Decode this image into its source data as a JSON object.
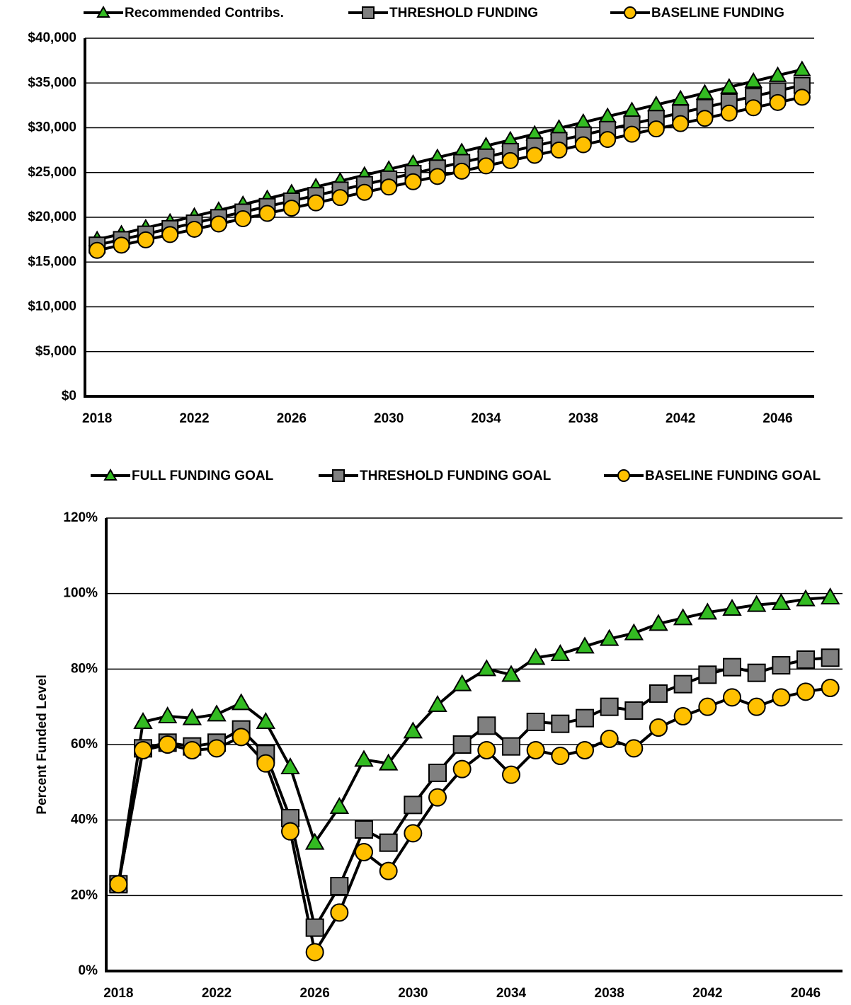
{
  "chart_data": [
    {
      "type": "line",
      "x": [
        2018,
        2019,
        2020,
        2021,
        2022,
        2023,
        2024,
        2025,
        2026,
        2027,
        2028,
        2029,
        2030,
        2031,
        2032,
        2033,
        2034,
        2035,
        2036,
        2037,
        2038,
        2039,
        2040,
        2041,
        2042,
        2043,
        2044,
        2045,
        2046,
        2047
      ],
      "xlim": [
        2017.5,
        2047.5
      ],
      "xticks": [
        2018,
        2022,
        2026,
        2030,
        2034,
        2038,
        2042,
        2046
      ],
      "ylim": [
        0,
        40000
      ],
      "yticks": [
        {
          "value": 0,
          "label": "$0"
        },
        {
          "value": 5000,
          "label": "$5,000"
        },
        {
          "value": 10000,
          "label": "$10,000"
        },
        {
          "value": 15000,
          "label": "$15,000"
        },
        {
          "value": 20000,
          "label": "$20,000"
        },
        {
          "value": 25000,
          "label": "$25,000"
        },
        {
          "value": 30000,
          "label": "$30,000"
        },
        {
          "value": 35000,
          "label": "$35,000"
        },
        {
          "value": 40000,
          "label": "$40,000"
        }
      ],
      "grid": true,
      "legend": "top",
      "line_color": "#000000",
      "series": [
        {
          "name": "Recommended Contribs.",
          "color": "#33bb22",
          "marker": "triangle",
          "values": [
            17500,
            18155,
            18810,
            19465,
            20120,
            20775,
            21430,
            22085,
            22740,
            23395,
            24050,
            24705,
            25360,
            26015,
            26670,
            27325,
            27980,
            28635,
            29290,
            29945,
            30600,
            31255,
            31910,
            32565,
            33220,
            33875,
            34530,
            35185,
            35840,
            36495
          ]
        },
        {
          "name": "THRESHOLD FUNDING",
          "color": "#808080",
          "marker": "square",
          "values": [
            16900,
            17515,
            18130,
            18745,
            19360,
            19975,
            20590,
            21205,
            21820,
            22435,
            23050,
            23665,
            24280,
            24895,
            25510,
            26125,
            26740,
            27355,
            27970,
            28585,
            29200,
            29815,
            30430,
            31045,
            31660,
            32275,
            32890,
            33505,
            34120,
            34735
          ]
        },
        {
          "name": "BASELINE FUNDING",
          "color": "#ffc000",
          "marker": "circle",
          "values": [
            16300,
            16890,
            17480,
            18070,
            18660,
            19250,
            19840,
            20430,
            21020,
            21610,
            22200,
            22790,
            23380,
            23970,
            24560,
            25150,
            25740,
            26330,
            26920,
            27510,
            28100,
            28690,
            29280,
            29870,
            30460,
            31050,
            31640,
            32230,
            32820,
            33410
          ]
        }
      ]
    },
    {
      "type": "line",
      "x": [
        2018,
        2019,
        2020,
        2021,
        2022,
        2023,
        2024,
        2025,
        2026,
        2027,
        2028,
        2029,
        2030,
        2031,
        2032,
        2033,
        2034,
        2035,
        2036,
        2037,
        2038,
        2039,
        2040,
        2041,
        2042,
        2043,
        2044,
        2045,
        2046,
        2047
      ],
      "xlim": [
        2017.5,
        2047.5
      ],
      "xticks": [
        2018,
        2022,
        2026,
        2030,
        2034,
        2038,
        2042,
        2046
      ],
      "ylim": [
        0,
        120
      ],
      "yticks": [
        {
          "value": 0,
          "label": "0%"
        },
        {
          "value": 20,
          "label": "20%"
        },
        {
          "value": 40,
          "label": "40%"
        },
        {
          "value": 60,
          "label": "60%"
        },
        {
          "value": 80,
          "label": "80%"
        },
        {
          "value": 100,
          "label": "100%"
        },
        {
          "value": 120,
          "label": "120%"
        }
      ],
      "y_label": "Percent Funded Level",
      "grid": true,
      "legend": "top",
      "line_color": "#000000",
      "series": [
        {
          "name": "FULL FUNDING GOAL",
          "color": "#33bb22",
          "marker": "triangle",
          "values": [
            23,
            66,
            67.5,
            67,
            68,
            71,
            66,
            54,
            34,
            43.5,
            56,
            55,
            63.5,
            70.5,
            76,
            80,
            78.5,
            83,
            84,
            86,
            88,
            89.5,
            92,
            93.5,
            95,
            96,
            97,
            97.5,
            98.5,
            99
          ]
        },
        {
          "name": "THRESHOLD FUNDING GOAL",
          "color": "#808080",
          "marker": "square",
          "values": [
            23,
            59,
            60.5,
            59.5,
            60.5,
            64,
            57.5,
            40.5,
            11.5,
            22.5,
            37.5,
            34,
            44,
            52.5,
            60,
            65,
            59.5,
            66,
            65.5,
            67,
            70,
            69,
            73.5,
            76,
            78.5,
            80.5,
            79,
            81,
            82.5,
            83
          ]
        },
        {
          "name": "BASELINE FUNDING GOAL",
          "color": "#ffc000",
          "marker": "circle",
          "values": [
            23,
            58.5,
            60,
            58.5,
            59,
            62,
            55,
            37,
            5,
            15.5,
            31.5,
            26.5,
            36.5,
            46,
            53.5,
            58.5,
            52,
            58.5,
            57,
            58.5,
            61.5,
            59,
            64.5,
            67.5,
            70,
            72.5,
            70,
            72.5,
            74,
            75
          ]
        }
      ]
    }
  ]
}
